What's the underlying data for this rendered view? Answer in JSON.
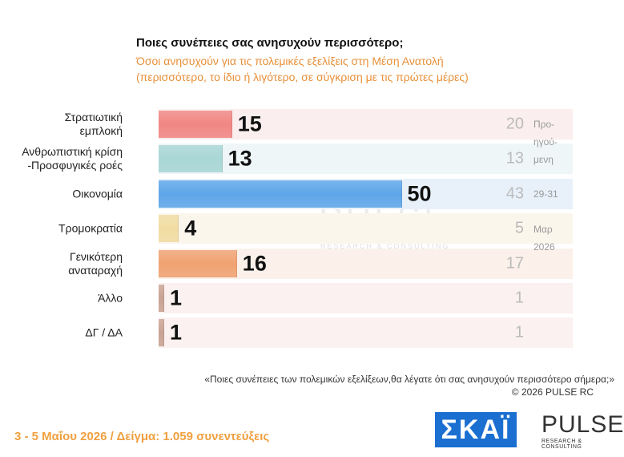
{
  "chart_data": {
    "type": "bar",
    "title": "Ποιες συνέπειες σας ανησυχούν περισσότερο;",
    "subtitle": [
      "Όσοι ανησυχούν για τις πολεμικές εξελίξεις στη Μέση Ανατολή",
      "(περισσότερο, το ίδιο ή λιγότερο, σε σύγκριση με τις πρώτες μέρες)"
    ],
    "categories": [
      "Στρατιωτική\nεμπλοκή",
      "Ανθρωπιστική κρίση\n-Προσφυγικές ροές",
      "Οικονομία",
      "Τρομοκρατία",
      "Γενικότερη\nαναταραχή",
      "Άλλο",
      "ΔΓ / ΔΑ"
    ],
    "values": [
      15,
      13,
      50,
      4,
      16,
      1,
      1
    ],
    "colors": [
      "#f08784",
      "#a9d6d6",
      "#5ea6e9",
      "#f1dca2",
      "#f0a272",
      "#c9a393",
      "#c9a393"
    ],
    "previous_values": [
      20,
      13,
      43,
      5,
      17,
      1,
      1
    ],
    "previous_label": [
      "Προ-",
      "ηγού-",
      "μενη",
      "29-31",
      "Μαρ",
      "2026"
    ],
    "question": "«Ποιες συνέπειες των πολεμικών εξελίξεων,θα λέγατε ότι σας ανησυχούν περισσότερο σήμερα;»",
    "copyright": "©  2026  PULSE RC",
    "footer": "3 - 5  Μαΐου 2026  /  Δείγμα:  1.059 συνεντεύξεις",
    "logos": {
      "skai": "ΣΚΑΪ",
      "pulse": "PULSE",
      "pulse_sub": "RESEARCH & CONSULTING"
    }
  }
}
